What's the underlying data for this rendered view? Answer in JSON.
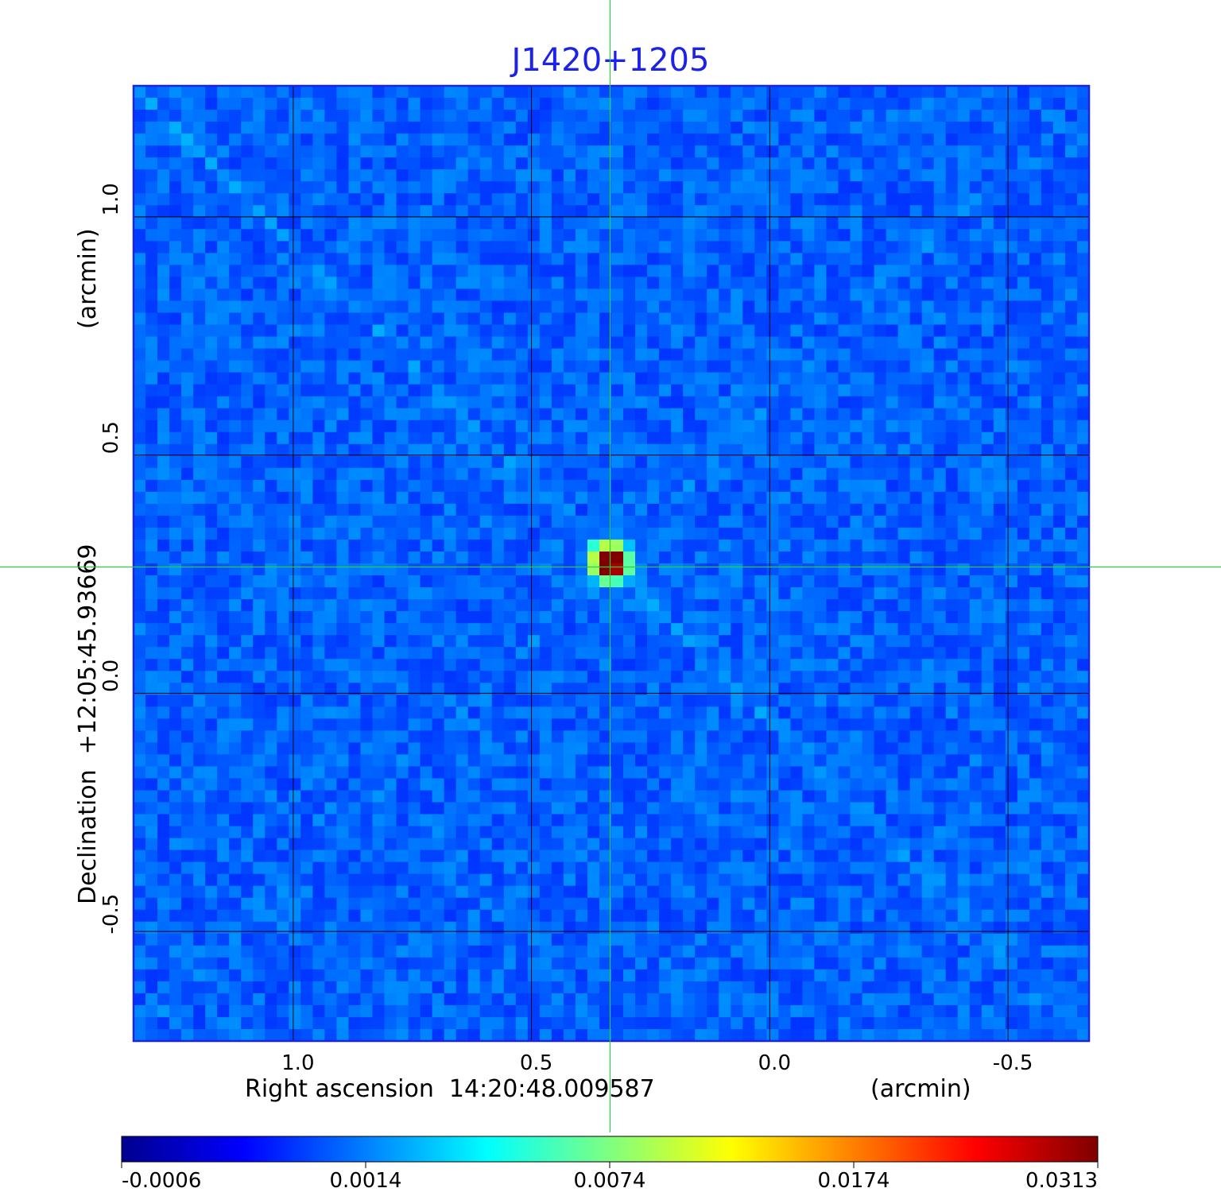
{
  "chart_data": {
    "type": "heatmap",
    "title": "J1420+1205",
    "xlabel": "Right ascension  14:20:48.009587",
    "xunit": "(arcmin)",
    "ylabel": "Declination  +12:05:45.93669",
    "yunit": "(arcmin)",
    "x_axis_reversed": true,
    "xlim": [
      1.335,
      -0.67
    ],
    "ylim": [
      -0.73,
      1.275
    ],
    "x_ticks": [
      {
        "value": 1.0,
        "label": "1.0"
      },
      {
        "value": 0.5,
        "label": "0.5"
      },
      {
        "value": 0.0,
        "label": "0.0"
      },
      {
        "value": -0.5,
        "label": "-0.5"
      }
    ],
    "y_ticks": [
      {
        "value": 1.0,
        "label": "1.0"
      },
      {
        "value": 0.5,
        "label": "0.5"
      },
      {
        "value": 0.0,
        "label": "0.0"
      },
      {
        "value": -0.5,
        "label": "-0.5"
      }
    ],
    "grid": true,
    "colormap": "jet",
    "colorbar": {
      "placement": "bottom",
      "range": [
        -0.0006,
        0.0313
      ],
      "ticks": [
        "-0.0006",
        "0.0014",
        "0.0074",
        "0.0174",
        "0.0313"
      ]
    },
    "source_peak": {
      "x": 0.335,
      "y": 0.275,
      "value": 0.0313
    },
    "background_level": 0.0,
    "crosshair": {
      "x": 0.335,
      "y": 0.265,
      "color": "#2ecc40"
    },
    "frame_color": "#1c22e6",
    "grid_color": "#000000"
  }
}
